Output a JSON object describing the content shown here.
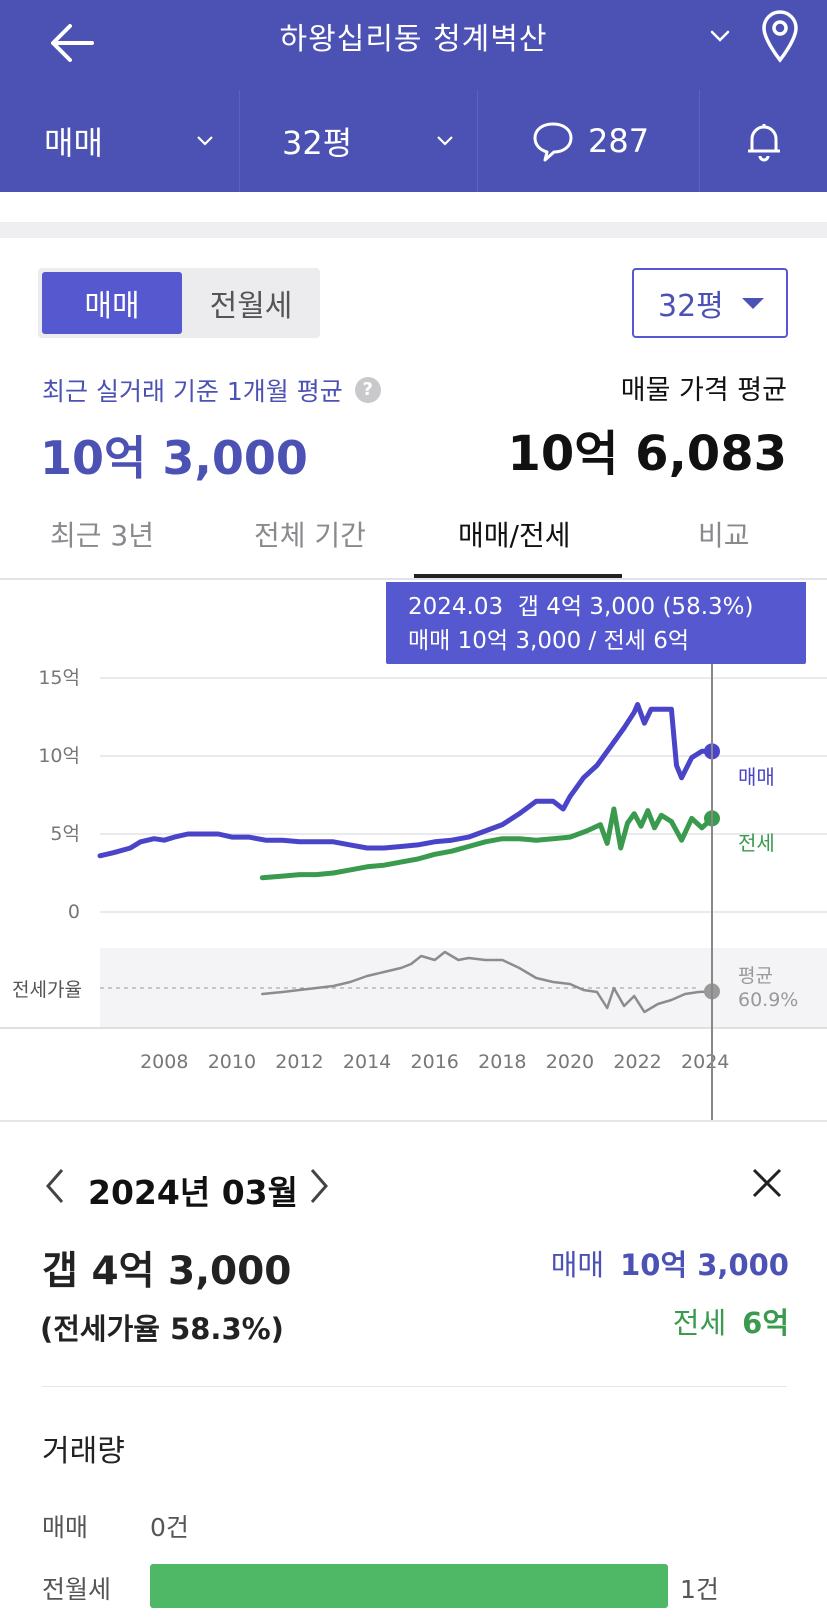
{
  "header": {
    "title": "하왕십리동 청계벽산",
    "filters": {
      "deal_type": "매매",
      "size": "32평",
      "comment_count": "287"
    }
  },
  "summary": {
    "toggle": [
      "매매",
      "전월세"
    ],
    "size_select": "32평",
    "recent_label": "최근 실거래 기준 1개월 평균",
    "recent_value": "10억 3,000",
    "listing_label": "매물 가격 평균",
    "listing_value": "10억 6,083"
  },
  "tabs": [
    "최근 3년",
    "전체 기간",
    "매매/전세",
    "비교"
  ],
  "active_tab": "매매/전세",
  "tooltip": {
    "line1": "2024.03  갭 4억 3,000 (58.3%)",
    "line2": "매매 10억 3,000 / 전세 6억"
  },
  "colors": {
    "brand": "#4c51b4",
    "sale": "#4a45c8",
    "jeonse": "#3a9b4f",
    "ratio": "#8c8c8c"
  },
  "chart_data": {
    "type": "line",
    "x_ticks": [
      "2008",
      "2010",
      "2012",
      "2014",
      "2016",
      "2018",
      "2020",
      "2022",
      "2024"
    ],
    "y_ticks": [
      "15억",
      "10억",
      "5억",
      "0"
    ],
    "ylim": [
      0,
      15
    ],
    "ratio_label": "전세가율",
    "avg_label": "평균",
    "avg_value": "60.9%",
    "series": [
      {
        "name": "매매",
        "points": [
          [
            2006.1,
            3.6
          ],
          [
            2006.5,
            3.8
          ],
          [
            2007.0,
            4.1
          ],
          [
            2007.3,
            4.5
          ],
          [
            2007.7,
            4.7
          ],
          [
            2008.0,
            4.6
          ],
          [
            2008.3,
            4.8
          ],
          [
            2008.7,
            5.0
          ],
          [
            2009.2,
            5.0
          ],
          [
            2009.6,
            5.0
          ],
          [
            2010.0,
            4.8
          ],
          [
            2010.5,
            4.8
          ],
          [
            2011.0,
            4.6
          ],
          [
            2011.5,
            4.6
          ],
          [
            2012.0,
            4.5
          ],
          [
            2012.5,
            4.5
          ],
          [
            2013.0,
            4.5
          ],
          [
            2013.5,
            4.3
          ],
          [
            2014.0,
            4.1
          ],
          [
            2014.5,
            4.1
          ],
          [
            2015.0,
            4.2
          ],
          [
            2015.5,
            4.3
          ],
          [
            2016.0,
            4.5
          ],
          [
            2016.5,
            4.6
          ],
          [
            2017.0,
            4.8
          ],
          [
            2017.5,
            5.2
          ],
          [
            2018.0,
            5.6
          ],
          [
            2018.5,
            6.3
          ],
          [
            2019.0,
            7.1
          ],
          [
            2019.5,
            7.1
          ],
          [
            2019.8,
            6.6
          ],
          [
            2020.0,
            7.4
          ],
          [
            2020.4,
            8.6
          ],
          [
            2020.8,
            9.4
          ],
          [
            2021.2,
            10.6
          ],
          [
            2021.6,
            11.8
          ],
          [
            2021.9,
            12.8
          ],
          [
            2022.0,
            13.3
          ],
          [
            2022.2,
            12.1
          ],
          [
            2022.4,
            13.0
          ],
          [
            2022.7,
            13.0
          ],
          [
            2023.0,
            13.0
          ],
          [
            2023.15,
            9.4
          ],
          [
            2023.3,
            8.6
          ],
          [
            2023.6,
            9.9
          ],
          [
            2023.9,
            10.3
          ],
          [
            2024.2,
            10.3
          ]
        ]
      },
      {
        "name": "전세",
        "points": [
          [
            2010.9,
            2.2
          ],
          [
            2011.5,
            2.3
          ],
          [
            2012.0,
            2.4
          ],
          [
            2012.5,
            2.4
          ],
          [
            2013.0,
            2.5
          ],
          [
            2013.5,
            2.7
          ],
          [
            2014.0,
            2.9
          ],
          [
            2014.5,
            3.0
          ],
          [
            2015.0,
            3.2
          ],
          [
            2015.5,
            3.4
          ],
          [
            2016.0,
            3.7
          ],
          [
            2016.5,
            3.9
          ],
          [
            2017.0,
            4.2
          ],
          [
            2017.5,
            4.5
          ],
          [
            2018.0,
            4.7
          ],
          [
            2018.5,
            4.7
          ],
          [
            2019.0,
            4.6
          ],
          [
            2019.5,
            4.7
          ],
          [
            2020.0,
            4.8
          ],
          [
            2020.5,
            5.2
          ],
          [
            2020.9,
            5.6
          ],
          [
            2021.1,
            4.4
          ],
          [
            2021.3,
            6.6
          ],
          [
            2021.5,
            4.1
          ],
          [
            2021.7,
            5.7
          ],
          [
            2021.9,
            6.3
          ],
          [
            2022.1,
            5.5
          ],
          [
            2022.3,
            6.5
          ],
          [
            2022.5,
            5.4
          ],
          [
            2022.7,
            6.2
          ],
          [
            2023.0,
            5.8
          ],
          [
            2023.3,
            4.6
          ],
          [
            2023.6,
            6.0
          ],
          [
            2023.9,
            5.4
          ],
          [
            2024.2,
            6.0
          ]
        ]
      },
      {
        "name": "전세가율",
        "points": [
          [
            2010.9,
            57
          ],
          [
            2011.5,
            58
          ],
          [
            2012.0,
            59
          ],
          [
            2012.5,
            60
          ],
          [
            2013.0,
            61
          ],
          [
            2013.5,
            63
          ],
          [
            2014.0,
            66
          ],
          [
            2014.5,
            68
          ],
          [
            2015.0,
            70
          ],
          [
            2015.3,
            72
          ],
          [
            2015.6,
            76
          ],
          [
            2016.0,
            74
          ],
          [
            2016.3,
            78
          ],
          [
            2016.7,
            74
          ],
          [
            2017.0,
            75
          ],
          [
            2017.5,
            74
          ],
          [
            2018.0,
            74
          ],
          [
            2018.5,
            70
          ],
          [
            2019.0,
            65
          ],
          [
            2019.5,
            63
          ],
          [
            2020.0,
            62
          ],
          [
            2020.4,
            59
          ],
          [
            2020.8,
            58
          ],
          [
            2021.1,
            50
          ],
          [
            2021.3,
            60
          ],
          [
            2021.6,
            51
          ],
          [
            2021.9,
            56
          ],
          [
            2022.2,
            48
          ],
          [
            2022.6,
            52
          ],
          [
            2023.0,
            54
          ],
          [
            2023.4,
            57
          ],
          [
            2023.8,
            58
          ],
          [
            2024.2,
            58.3
          ]
        ]
      }
    ],
    "avg_ratio": 60.9
  },
  "detail": {
    "month": "2024년 03월",
    "gap": "갭 4억 3,000",
    "ratio_text": "(전세가율 58.3%)",
    "sale_label": "매매",
    "sale_value": "10억 3,000",
    "jeonse_label": "전세",
    "jeonse_value": "6억",
    "volume_title": "거래량",
    "volume": [
      {
        "label": "매매",
        "value": "0건",
        "count": 0
      },
      {
        "label": "전월세",
        "value": "1건",
        "count": 1
      }
    ]
  }
}
